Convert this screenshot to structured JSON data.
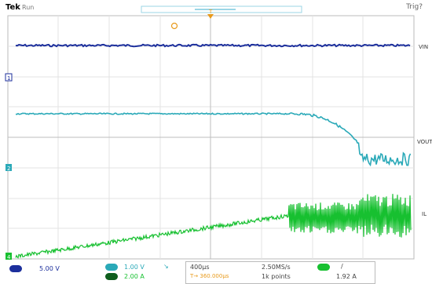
{
  "header": {
    "brand": "Tek",
    "run_state": "Run",
    "trigger_status": "Trig?"
  },
  "markers": {
    "trigger_position": "T",
    "channel1_marker": "1",
    "channel2_marker": "2",
    "channel4_marker": "4"
  },
  "traces": {
    "vin_label": "VIN",
    "vout_label": "VOUT",
    "il_label": "IL"
  },
  "status": {
    "ch1_scale": "5.00 V",
    "ch2_scale": "1.00 V",
    "ch4_scale": "2.00 A",
    "timebase": "400µs",
    "trigger_offset": "T→ 360.000µs",
    "sample_rate": "2.50MS/s",
    "record_length": "1k points",
    "trigger_slope": "/",
    "trigger_level": "1.92 A"
  },
  "colors": {
    "ch1": "#1c2f9c",
    "ch2": "#2aa9b8",
    "ch4": "#17c030",
    "trigger": "#e89a1b",
    "graticule": "#cccccc"
  }
}
